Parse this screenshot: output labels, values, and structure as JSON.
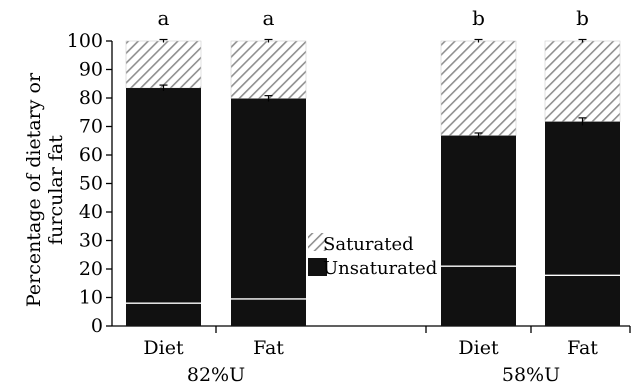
{
  "chart_data": {
    "type": "bar",
    "stacked": true,
    "ylabel_line1": "Percentage of dietary or",
    "ylabel_line2": "furcular fat",
    "ylim": [
      0,
      100
    ],
    "yticks": [
      0,
      10,
      20,
      30,
      40,
      50,
      60,
      70,
      80,
      90,
      100
    ],
    "categories": [
      "Diet",
      "Fat",
      "Diet",
      "Fat"
    ],
    "groups": [
      "82%U",
      "82%U",
      "58%U",
      "58%U"
    ],
    "group_labels": [
      "82%U",
      "58%U"
    ],
    "significance": [
      "a",
      "a",
      "b",
      "b"
    ],
    "series": [
      {
        "name": "Unsaturated",
        "values": [
          83.5,
          79.8,
          66.8,
          71.7
        ],
        "errors": [
          0.5,
          0.5,
          0.4,
          0.8
        ],
        "inner_line": [
          8,
          9.5,
          21,
          17.8
        ]
      },
      {
        "name": "Saturated",
        "values": [
          16.5,
          20.2,
          33.2,
          28.3
        ],
        "errors": [
          0.3,
          0.3,
          0.3,
          0.3
        ]
      }
    ],
    "legend": [
      "Saturated",
      "Unsaturated"
    ],
    "legend_position": "center",
    "colors": {
      "unsaturated": "#111111",
      "saturated_stripe": "#9a9a9a"
    }
  }
}
